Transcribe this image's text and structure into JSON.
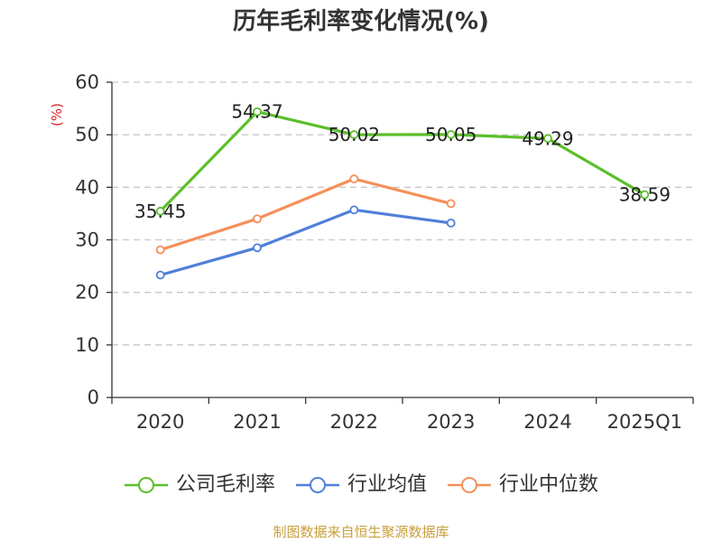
{
  "colors": {
    "company": "#5bbf2a",
    "industry_avg": "#4f80d8",
    "industry_median": "#f58f5a",
    "grid": "#c8c8c8",
    "axis": "#333333",
    "unit": "#d62728",
    "footer": "#c8a03c"
  },
  "footer": "制图数据来自恒生聚源数据库",
  "chart_data": {
    "type": "line",
    "title": "历年毛利率变化情况(%)",
    "ylabel": "(%)",
    "xlabel": "",
    "categories": [
      "2020",
      "2021",
      "2022",
      "2023",
      "2024",
      "2025Q1"
    ],
    "ylim": [
      0,
      60
    ],
    "yticks": [
      0,
      10,
      20,
      30,
      40,
      50,
      60
    ],
    "grid": true,
    "legend_position": "bottom",
    "series": [
      {
        "name": "公司毛利率",
        "color_key": "company",
        "values": [
          35.45,
          54.37,
          50.02,
          50.05,
          49.29,
          38.59
        ],
        "labels": [
          "35.45",
          "54.37",
          "50.02",
          "50.05",
          "49.29",
          "38.59"
        ],
        "show_labels": true
      },
      {
        "name": "行业均值",
        "color_key": "industry_avg",
        "values": [
          23.3,
          28.5,
          35.7,
          33.2,
          null,
          null
        ],
        "show_labels": false
      },
      {
        "name": "行业中位数",
        "color_key": "industry_median",
        "values": [
          28.1,
          34.0,
          41.6,
          36.9,
          null,
          null
        ],
        "show_labels": false
      }
    ]
  }
}
